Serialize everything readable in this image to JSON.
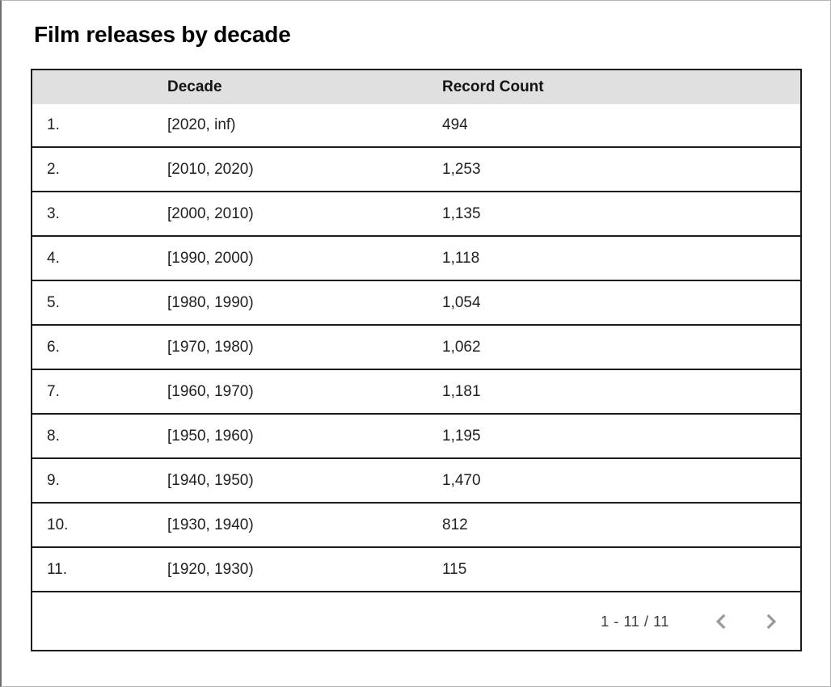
{
  "title": "Film releases by decade",
  "table": {
    "headers": {
      "index": "",
      "decade": "Decade",
      "count": "Record Count"
    },
    "rows": [
      {
        "index": "1.",
        "decade": "[2020, inf)",
        "count": "494"
      },
      {
        "index": "2.",
        "decade": "[2010, 2020)",
        "count": "1,253"
      },
      {
        "index": "3.",
        "decade": "[2000, 2010)",
        "count": "1,135"
      },
      {
        "index": "4.",
        "decade": "[1990, 2000)",
        "count": "1,118"
      },
      {
        "index": "5.",
        "decade": "[1980, 1990)",
        "count": "1,054"
      },
      {
        "index": "6.",
        "decade": "[1970, 1980)",
        "count": "1,062"
      },
      {
        "index": "7.",
        "decade": "[1960, 1970)",
        "count": "1,181"
      },
      {
        "index": "8.",
        "decade": "[1950, 1960)",
        "count": "1,195"
      },
      {
        "index": "9.",
        "decade": "[1940, 1950)",
        "count": "1,470"
      },
      {
        "index": "10.",
        "decade": "[1930, 1940)",
        "count": "812"
      },
      {
        "index": "11.",
        "decade": "[1920, 1930)",
        "count": "115"
      }
    ]
  },
  "pagination": {
    "range": "1 - 11 / 11",
    "prev_icon": "chevron-left-icon",
    "next_icon": "chevron-right-icon"
  },
  "colors": {
    "header_bg": "#e0e0e0",
    "border": "#1c1c1c",
    "text": "#212121",
    "pagination_text": "#3d3d3d",
    "chevron": "#9a9a9a"
  },
  "chart_data": {
    "type": "table",
    "title": "Film releases by decade",
    "columns": [
      "Decade",
      "Record Count"
    ],
    "categories": [
      "[2020, inf)",
      "[2010, 2020)",
      "[2000, 2010)",
      "[1990, 2000)",
      "[1980, 1990)",
      "[1970, 1980)",
      "[1960, 1970)",
      "[1950, 1960)",
      "[1940, 1950)",
      "[1930, 1940)",
      "[1920, 1930)"
    ],
    "values": [
      494,
      1253,
      1135,
      1118,
      1054,
      1062,
      1181,
      1195,
      1470,
      812,
      115
    ],
    "pagination": "1 - 11 / 11"
  }
}
